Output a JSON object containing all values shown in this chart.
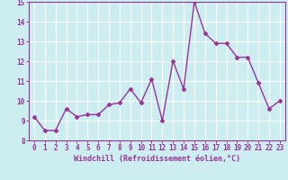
{
  "x": [
    0,
    1,
    2,
    3,
    4,
    5,
    6,
    7,
    8,
    9,
    10,
    11,
    12,
    13,
    14,
    15,
    16,
    17,
    18,
    19,
    20,
    21,
    22,
    23
  ],
  "y": [
    9.2,
    8.5,
    8.5,
    9.6,
    9.2,
    9.3,
    9.3,
    9.8,
    9.9,
    10.6,
    9.9,
    11.1,
    9.0,
    12.0,
    10.6,
    15.0,
    13.4,
    12.9,
    12.9,
    12.2,
    12.2,
    10.9,
    9.6,
    10.0
  ],
  "line_color": "#993399",
  "marker": "D",
  "markersize": 2.5,
  "linewidth": 1.0,
  "xlabel": "Windchill (Refroidissement éolien,°C)",
  "xlabel_fontsize": 6.0,
  "ylim": [
    8,
    15
  ],
  "xlim": [
    -0.5,
    23.5
  ],
  "yticks": [
    8,
    9,
    10,
    11,
    12,
    13,
    14,
    15
  ],
  "xticks": [
    0,
    1,
    2,
    3,
    4,
    5,
    6,
    7,
    8,
    9,
    10,
    11,
    12,
    13,
    14,
    15,
    16,
    17,
    18,
    19,
    20,
    21,
    22,
    23
  ],
  "bg_color": "#cceef0",
  "grid_color": "#ffffff",
  "tick_color": "#993399",
  "label_color": "#993399",
  "tick_fontsize": 5.5,
  "spine_color": "#993399"
}
